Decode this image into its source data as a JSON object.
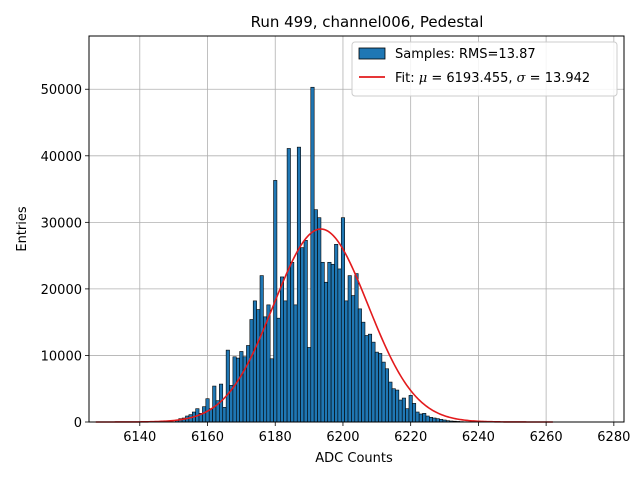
{
  "chart_data": {
    "type": "bar",
    "title": "Run 499, channel006, Pedestal",
    "xlabel": "ADC Counts",
    "ylabel": "Entries",
    "xlim": [
      6125,
      6283
    ],
    "ylim": [
      0,
      58000
    ],
    "xticks": [
      6140,
      6160,
      6180,
      6200,
      6220,
      6240,
      6260,
      6280
    ],
    "yticks": [
      0,
      10000,
      20000,
      30000,
      40000,
      50000
    ],
    "grid": true,
    "legend_position": "upper right",
    "bin_width": 1,
    "bar_color": "#1f77b4",
    "fit_color": "#e31a1c",
    "series": [
      {
        "name": "Samples: RMS=13.87",
        "x": [
          6151,
          6152,
          6153,
          6154,
          6155,
          6156,
          6157,
          6158,
          6159,
          6160,
          6161,
          6162,
          6163,
          6164,
          6165,
          6166,
          6167,
          6168,
          6169,
          6170,
          6171,
          6172,
          6173,
          6174,
          6175,
          6176,
          6177,
          6178,
          6179,
          6180,
          6181,
          6182,
          6183,
          6184,
          6185,
          6186,
          6187,
          6188,
          6189,
          6190,
          6191,
          6192,
          6193,
          6194,
          6195,
          6196,
          6197,
          6198,
          6199,
          6200,
          6201,
          6202,
          6203,
          6204,
          6205,
          6206,
          6207,
          6208,
          6209,
          6210,
          6211,
          6212,
          6213,
          6214,
          6215,
          6216,
          6217,
          6218,
          6219,
          6220,
          6221,
          6222,
          6223,
          6224,
          6225,
          6226,
          6227,
          6228,
          6229,
          6230,
          6231,
          6232,
          6233,
          6234,
          6235,
          6236,
          6237,
          6238,
          6239,
          6240
        ],
        "values": [
          300,
          500,
          600,
          900,
          1100,
          1500,
          2000,
          1300,
          2300,
          3500,
          2000,
          5400,
          3200,
          5700,
          2200,
          10800,
          5500,
          9800,
          9600,
          10600,
          9800,
          11500,
          15400,
          18200,
          16900,
          22000,
          15800,
          17600,
          9500,
          36300,
          15600,
          21800,
          18200,
          41100,
          24000,
          17600,
          41300,
          26200,
          27300,
          11200,
          50300,
          31900,
          30700,
          24000,
          21000,
          24000,
          23700,
          26700,
          23000,
          30700,
          18200,
          22000,
          19000,
          22300,
          17000,
          15000,
          13000,
          13200,
          12000,
          10500,
          10300,
          9000,
          8000,
          6000,
          5000,
          4800,
          3300,
          3600,
          2000,
          4000,
          2800,
          1500,
          1200,
          1300,
          900,
          700,
          600,
          500,
          400,
          300,
          200,
          150,
          120,
          90,
          60,
          40,
          30,
          20,
          10,
          5
        ]
      },
      {
        "name": "Fit: μ = 6193.455, σ = 13.942",
        "kind": "gaussian_fit",
        "mu": 6193.455,
        "sigma": 13.942,
        "amplitude": 29000,
        "x_range": [
          6127,
          6262
        ]
      }
    ]
  },
  "legend": {
    "samples_label": "Samples: RMS=13.87",
    "fit_prefix": "Fit: ",
    "mu_symbol": "μ",
    "mu_value": " = 6193.455, ",
    "sigma_symbol": "σ",
    "sigma_value": " = 13.942"
  }
}
